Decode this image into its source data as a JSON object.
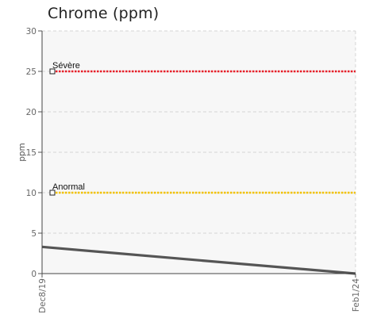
{
  "title": "Chrome (ppm)",
  "chart_data": {
    "type": "line",
    "title": "Chrome (ppm)",
    "ylabel": "ppm",
    "xlabel": "",
    "ylim": [
      0,
      30
    ],
    "yticks": [
      0,
      5,
      10,
      15,
      20,
      25,
      30
    ],
    "x_tick_labels": [
      "Dec8/19",
      "Feb1/24"
    ],
    "series": [
      {
        "x": [
          "Dec8/19",
          "Feb1/24"
        ],
        "values": [
          3.3,
          0
        ],
        "color": "#555555"
      }
    ],
    "thresholds": [
      {
        "name": "Sévère",
        "value": 25,
        "color": "#e8202a"
      },
      {
        "name": "Anormal",
        "value": 10,
        "color": "#f2c200"
      }
    ],
    "grid": true,
    "plot_background": "#f7f7f7"
  }
}
